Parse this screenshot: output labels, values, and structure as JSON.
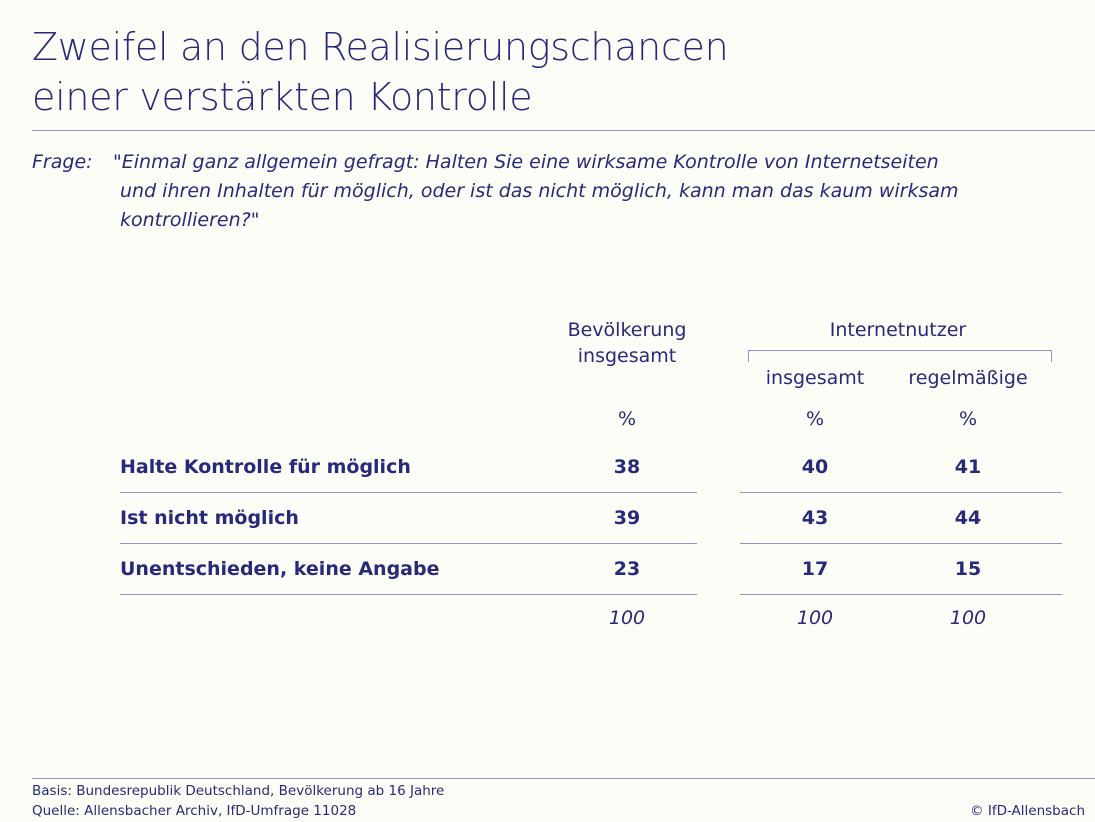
{
  "title": {
    "lines": [
      "Zweifel an den Realisierungschancen",
      "einer verstärkten Kontrolle"
    ]
  },
  "question": {
    "label": "Frage:",
    "lines": [
      "\"Einmal ganz allgemein gefragt: Halten Sie eine wirksame Kontrolle von Internetseiten",
      "und ihren Inhalten für möglich, oder ist das nicht möglich, kann man das kaum wirksam",
      "kontrollieren?\""
    ]
  },
  "table": {
    "columns": [
      {
        "header": [
          "Bevölkerung",
          "insgesamt"
        ]
      },
      {
        "group": "Internetnutzer",
        "header": [
          "insgesamt"
        ]
      },
      {
        "header": [
          "regelmäßige"
        ]
      }
    ],
    "units": [
      "%",
      "%",
      "%"
    ],
    "rows": [
      {
        "label": "Halte Kontrolle für möglich",
        "values": [
          38,
          40,
          41
        ]
      },
      {
        "label": "Ist nicht möglich",
        "values": [
          39,
          43,
          44
        ]
      },
      {
        "label": "Unentschieden, keine Angabe",
        "values": [
          23,
          17,
          15
        ]
      }
    ],
    "totals": [
      100,
      100,
      100
    ]
  },
  "footer": {
    "basis": "Basis: Bundesrepublik Deutschland, Bevölkerung ab 16 Jahre",
    "source": "Quelle: Allensbacher Archiv, IfD-Umfrage 11028",
    "copyright": "© IfD-Allensbach"
  }
}
